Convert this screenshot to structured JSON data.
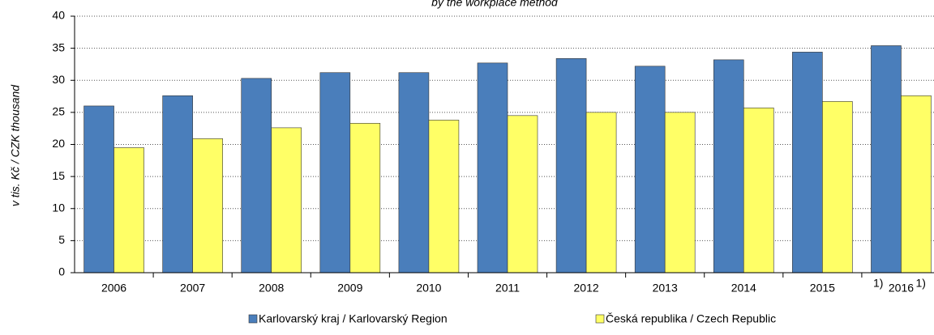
{
  "chart_data": {
    "type": "bar",
    "subtitle": "by the workplace method",
    "y_label": "v tis. Kč / CZK thousand",
    "categories": [
      "2006",
      "2007",
      "2008",
      "2009",
      "2010",
      "2011",
      "2012",
      "2013",
      "2014",
      "2015",
      "2016"
    ],
    "annotations": [
      "1)",
      "1)"
    ],
    "series": [
      {
        "name": "Karlovarský kraj / Karlovarský Region",
        "color": "#4a7ebb",
        "values": [
          26.0,
          27.6,
          30.3,
          31.2,
          31.2,
          32.7,
          33.4,
          32.2,
          33.2,
          34.4,
          35.4
        ]
      },
      {
        "name": "Česká republika / Czech Republic",
        "color": "#ffff66",
        "values": [
          19.5,
          20.9,
          22.6,
          23.3,
          23.8,
          24.5,
          25.0,
          25.0,
          25.7,
          26.7,
          27.6
        ]
      }
    ],
    "ylim": [
      0,
      40
    ],
    "yticks": [
      0,
      5,
      10,
      15,
      20,
      25,
      30,
      35,
      40
    ],
    "grid": true
  }
}
